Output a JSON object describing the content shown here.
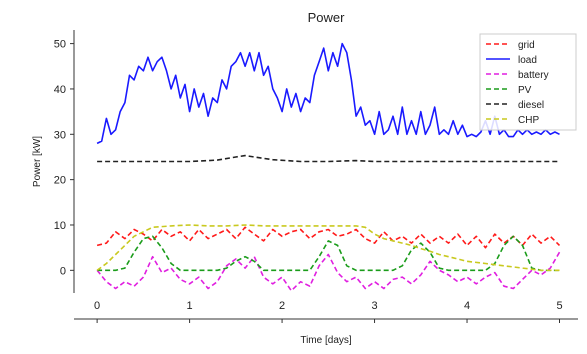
{
  "chart_data": {
    "type": "line",
    "title": "Power",
    "xlabel": "Time [days]",
    "ylabel": "Power [kW]",
    "xlim": [
      -0.25,
      5.2
    ],
    "ylim": [
      -5,
      53
    ],
    "xticks": [
      0,
      1,
      2,
      3,
      4,
      5
    ],
    "yticks": [
      0,
      10,
      20,
      30,
      40,
      50
    ],
    "grid": false,
    "legend_position": "top-right",
    "series": [
      {
        "name": "grid",
        "color": "#ff1a1a",
        "dash": "dashed",
        "x": [
          0,
          0.1,
          0.2,
          0.3,
          0.4,
          0.5,
          0.6,
          0.7,
          0.8,
          0.9,
          1.0,
          1.1,
          1.2,
          1.3,
          1.4,
          1.5,
          1.6,
          1.7,
          1.8,
          1.9,
          2.0,
          2.1,
          2.2,
          2.3,
          2.4,
          2.5,
          2.6,
          2.7,
          2.8,
          2.9,
          3.0,
          3.1,
          3.2,
          3.3,
          3.4,
          3.5,
          3.6,
          3.7,
          3.8,
          3.9,
          4.0,
          4.1,
          4.2,
          4.3,
          4.4,
          4.5,
          4.6,
          4.7,
          4.8,
          4.9,
          5.0
        ],
        "y": [
          5.5,
          6,
          8.5,
          7,
          9,
          8,
          6.5,
          9,
          7.5,
          8.5,
          6.5,
          9,
          7,
          8,
          9,
          7,
          9.5,
          8,
          6.5,
          9,
          7.5,
          8.5,
          9,
          7,
          8.5,
          9,
          7.5,
          8,
          9,
          7,
          6,
          8.5,
          6.5,
          7.5,
          6,
          8,
          6,
          7.5,
          6,
          8,
          5.5,
          7.5,
          5,
          8,
          6,
          7.5,
          5.5,
          8,
          6,
          7.5,
          5.5
        ]
      },
      {
        "name": "load",
        "color": "#1a1aff",
        "dash": "solid",
        "x": [
          0,
          0.05,
          0.1,
          0.15,
          0.2,
          0.25,
          0.3,
          0.35,
          0.4,
          0.45,
          0.5,
          0.55,
          0.6,
          0.65,
          0.7,
          0.75,
          0.8,
          0.85,
          0.9,
          0.95,
          1.0,
          1.05,
          1.1,
          1.15,
          1.2,
          1.25,
          1.3,
          1.35,
          1.4,
          1.45,
          1.5,
          1.55,
          1.6,
          1.65,
          1.7,
          1.75,
          1.8,
          1.85,
          1.9,
          1.95,
          2.0,
          2.05,
          2.1,
          2.15,
          2.2,
          2.25,
          2.3,
          2.35,
          2.4,
          2.45,
          2.5,
          2.55,
          2.6,
          2.65,
          2.7,
          2.75,
          2.8,
          2.85,
          2.9,
          2.95,
          3.0,
          3.05,
          3.1,
          3.15,
          3.2,
          3.25,
          3.3,
          3.35,
          3.4,
          3.45,
          3.5,
          3.55,
          3.6,
          3.65,
          3.7,
          3.75,
          3.8,
          3.85,
          3.9,
          3.95,
          4.0,
          4.05,
          4.1,
          4.15,
          4.2,
          4.25,
          4.3,
          4.35,
          4.4,
          4.45,
          4.5,
          4.55,
          4.6,
          4.65,
          4.7,
          4.75,
          4.8,
          4.85,
          4.9,
          4.95,
          5.0
        ],
        "y": [
          28,
          28.5,
          33.5,
          30,
          31,
          35,
          37,
          43,
          42,
          45,
          44,
          47,
          44,
          46,
          47,
          44,
          40,
          43,
          38,
          41,
          35,
          40,
          36,
          39,
          34,
          38,
          37,
          42,
          40,
          45,
          46,
          48,
          45,
          48,
          44,
          48,
          43,
          45,
          40,
          38,
          35,
          40,
          36,
          39,
          35,
          38,
          37,
          43,
          46,
          49,
          44,
          48,
          45,
          50,
          48,
          42,
          34,
          36,
          32,
          33,
          30,
          35,
          30,
          31,
          34,
          30,
          36,
          30,
          33,
          30,
          35,
          30,
          32,
          36,
          30,
          31,
          30,
          33,
          30,
          32,
          29.5,
          30,
          29.5,
          30.5,
          33,
          30,
          34,
          30,
          31,
          29.5,
          29.5,
          31,
          30,
          31,
          30,
          30.5,
          30,
          31,
          30,
          30.5,
          30
        ]
      },
      {
        "name": "battery",
        "color": "#e01fe0",
        "dash": "dashed",
        "x": [
          0,
          0.1,
          0.2,
          0.3,
          0.4,
          0.5,
          0.6,
          0.7,
          0.8,
          0.9,
          1.0,
          1.1,
          1.2,
          1.3,
          1.4,
          1.5,
          1.6,
          1.7,
          1.8,
          1.9,
          2.0,
          2.1,
          2.2,
          2.3,
          2.4,
          2.5,
          2.6,
          2.7,
          2.8,
          2.9,
          3.0,
          3.1,
          3.2,
          3.3,
          3.4,
          3.5,
          3.6,
          3.7,
          3.8,
          3.9,
          4.0,
          4.1,
          4.2,
          4.3,
          4.4,
          4.5,
          4.6,
          4.7,
          4.8,
          4.9,
          5.0
        ],
        "y": [
          0,
          -2.5,
          -4,
          -2.5,
          -3.5,
          -1.5,
          3,
          -0.5,
          0.5,
          -2,
          -3,
          -1.5,
          -4,
          -2.5,
          1,
          2.5,
          0.5,
          3,
          -1.5,
          -3,
          -1.5,
          -4.5,
          -2.5,
          -3.5,
          1,
          3.5,
          -0.5,
          -2.5,
          -1.5,
          -4,
          -2.5,
          -4,
          -2,
          -1.5,
          -3,
          -1,
          2,
          0,
          -1,
          -2.5,
          -1.5,
          -3,
          -1.5,
          -0.5,
          -3.5,
          -4,
          -2,
          0,
          -1,
          0.5,
          4
        ]
      },
      {
        "name": "PV",
        "color": "#1a9c1a",
        "dash": "dashed",
        "x": [
          0,
          0.1,
          0.2,
          0.3,
          0.4,
          0.5,
          0.6,
          0.7,
          0.8,
          0.9,
          1.0,
          1.1,
          1.2,
          1.3,
          1.4,
          1.5,
          1.6,
          1.7,
          1.8,
          1.9,
          2.0,
          2.1,
          2.2,
          2.3,
          2.4,
          2.5,
          2.6,
          2.7,
          2.8,
          2.9,
          3.0,
          3.1,
          3.2,
          3.3,
          3.4,
          3.5,
          3.6,
          3.7,
          3.8,
          3.9,
          4.0,
          4.1,
          4.2,
          4.3,
          4.4,
          4.5,
          4.6,
          4.7,
          4.8,
          4.9,
          5.0
        ],
        "y": [
          0,
          0,
          0,
          0.5,
          4,
          7,
          7.5,
          5,
          1.5,
          0,
          0,
          0,
          0,
          0,
          0.5,
          2,
          3,
          2,
          0,
          0,
          0,
          0,
          0,
          0,
          3,
          6.5,
          5.5,
          1,
          0,
          0,
          0,
          0,
          0,
          1,
          4.5,
          6,
          4,
          0.5,
          0,
          0,
          0,
          0,
          0,
          1.5,
          5.5,
          7.5,
          5.5,
          0.5,
          0,
          0,
          0
        ]
      },
      {
        "name": "diesel",
        "color": "#222222",
        "dash": "dashed",
        "x": [
          0,
          0.5,
          1.0,
          1.3,
          1.5,
          1.6,
          1.7,
          1.9,
          2.2,
          2.5,
          2.8,
          3.0,
          3.5,
          4.0,
          4.5,
          5.0
        ],
        "y": [
          24,
          24,
          24,
          24.3,
          25,
          25.3,
          25,
          24.4,
          24,
          24,
          24.2,
          24,
          24,
          24,
          24,
          24
        ]
      },
      {
        "name": "CHP",
        "color": "#c9c91f",
        "dash": "dashed",
        "x": [
          0,
          0.1,
          0.2,
          0.3,
          0.4,
          0.5,
          0.6,
          0.8,
          1.0,
          1.2,
          1.4,
          1.6,
          1.8,
          2.0,
          2.2,
          2.4,
          2.6,
          2.8,
          2.9,
          3.0,
          3.1,
          3.2,
          3.3,
          3.4,
          3.5,
          3.6,
          3.7,
          3.8,
          3.9,
          4.0,
          4.2,
          4.4,
          4.6,
          4.8,
          5.0
        ],
        "y": [
          0,
          1.5,
          3.5,
          5.5,
          7.5,
          8.5,
          9.5,
          9.8,
          10,
          9.8,
          9.8,
          10,
          9.8,
          9.8,
          9.8,
          9.8,
          9.8,
          9.8,
          9.5,
          8,
          7,
          6.5,
          6,
          5.5,
          4.8,
          4.2,
          3.5,
          3,
          2.5,
          2,
          1.5,
          1,
          0.5,
          0,
          0
        ]
      }
    ]
  }
}
